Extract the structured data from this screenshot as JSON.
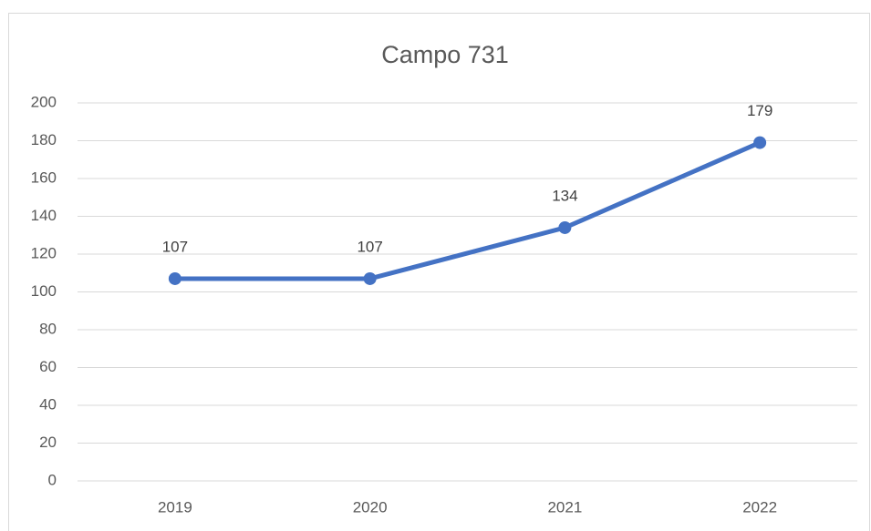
{
  "chart_data": {
    "type": "line",
    "title": "Campo 731",
    "categories": [
      "2019",
      "2020",
      "2021",
      "2022"
    ],
    "values": [
      107,
      107,
      134,
      179
    ],
    "color": "#4472c4",
    "ylim": [
      0,
      200
    ],
    "yticks": [
      0,
      20,
      40,
      60,
      80,
      100,
      120,
      140,
      160,
      180,
      200
    ],
    "grid": true
  }
}
